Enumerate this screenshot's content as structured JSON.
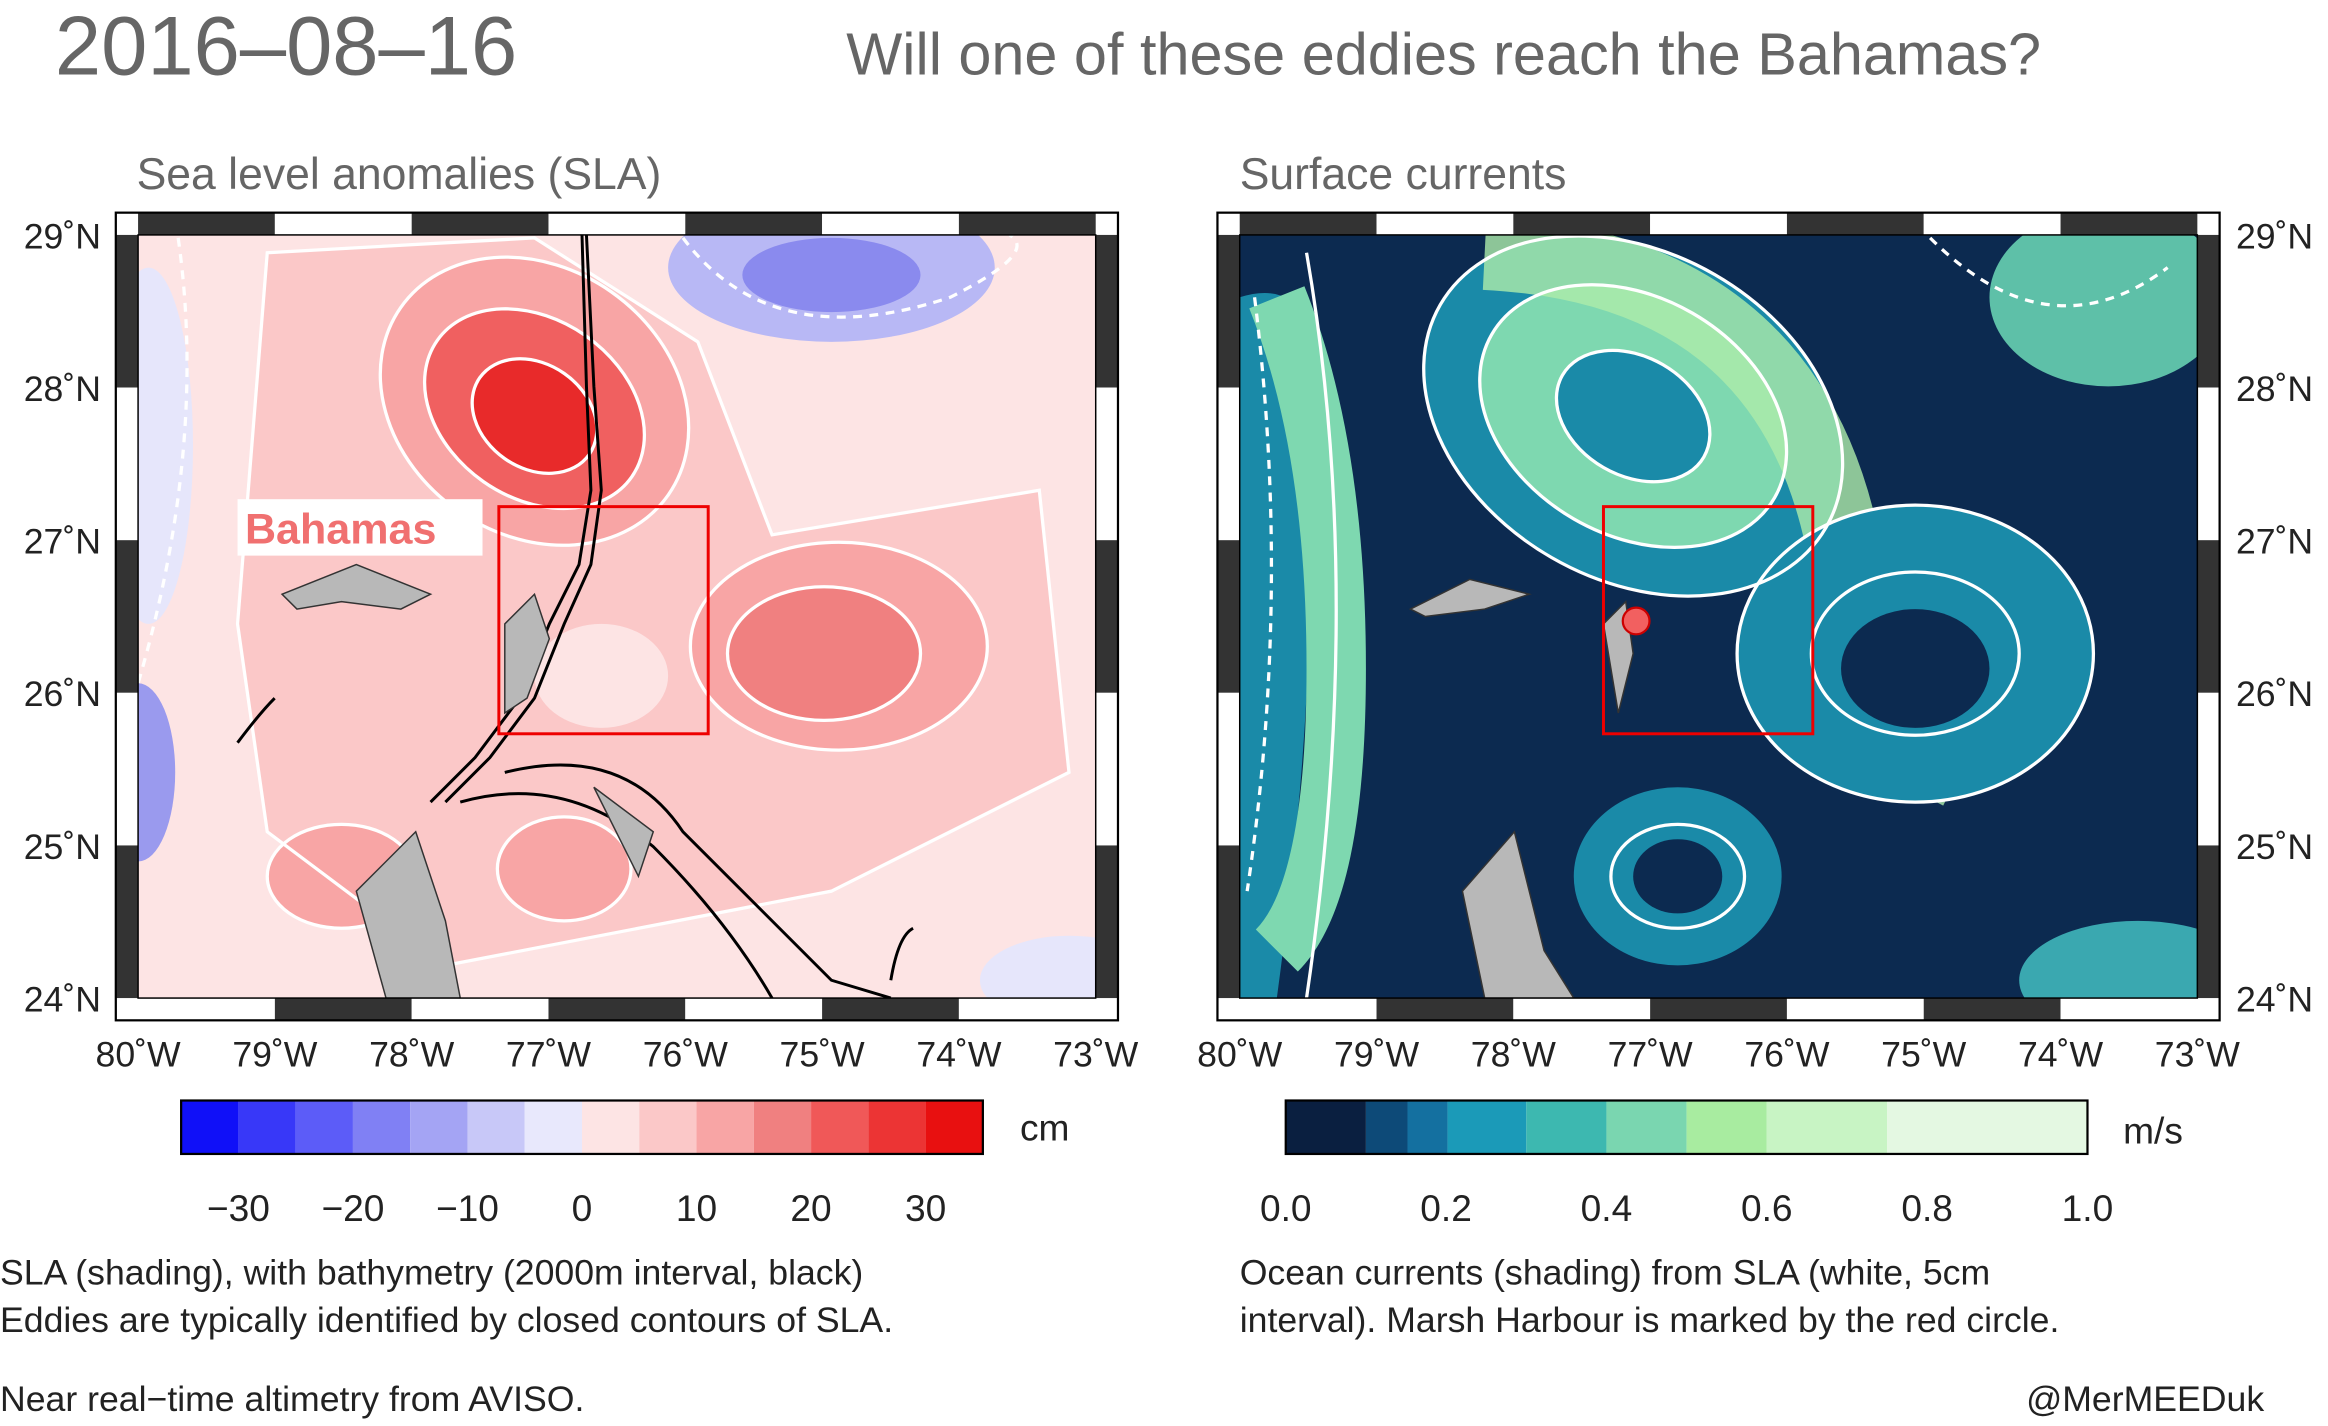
{
  "header": {
    "date": "2016–08–16",
    "question": "Will one of these eddies reach the Bahamas?"
  },
  "panels": [
    {
      "subtitle": "Sea level anomalies (SLA)",
      "place_label": "Bahamas",
      "lat_labels": [
        "29˚N",
        "28˚N",
        "27˚N",
        "26˚N",
        "25˚N",
        "24˚N"
      ],
      "lon_labels": [
        "80˚W",
        "79˚W",
        "78˚W",
        "77˚W",
        "76˚W",
        "75˚W",
        "74˚W",
        "73˚W"
      ],
      "colorbar_ticks": [
        "−30",
        "−20",
        "−10",
        "0",
        "10",
        "20",
        "30"
      ],
      "colorbar_unit": "cm",
      "caption": [
        "SLA (shading), with bathymetry (2000m interval, black)",
        "Eddies are typically identified by closed contours of SLA."
      ]
    },
    {
      "subtitle": "Surface currents",
      "lat_labels": [
        "29˚N",
        "28˚N",
        "27˚N",
        "26˚N",
        "25˚N",
        "24˚N"
      ],
      "lon_labels": [
        "80˚W",
        "79˚W",
        "78˚W",
        "77˚W",
        "76˚W",
        "75˚W",
        "74˚W",
        "73˚W"
      ],
      "colorbar_ticks": [
        "0.0",
        "0.2",
        "0.4",
        "0.6",
        "0.8",
        "1.0"
      ],
      "colorbar_unit": "m/s",
      "caption": [
        "Ocean currents (shading) from SLA (white, 5cm",
        "interval). Marsh Harbour is marked by the red circle."
      ]
    }
  ],
  "footer": {
    "source": "Near real−time altimetry from AVISO.",
    "credit": "@MerMEEDuk"
  }
}
